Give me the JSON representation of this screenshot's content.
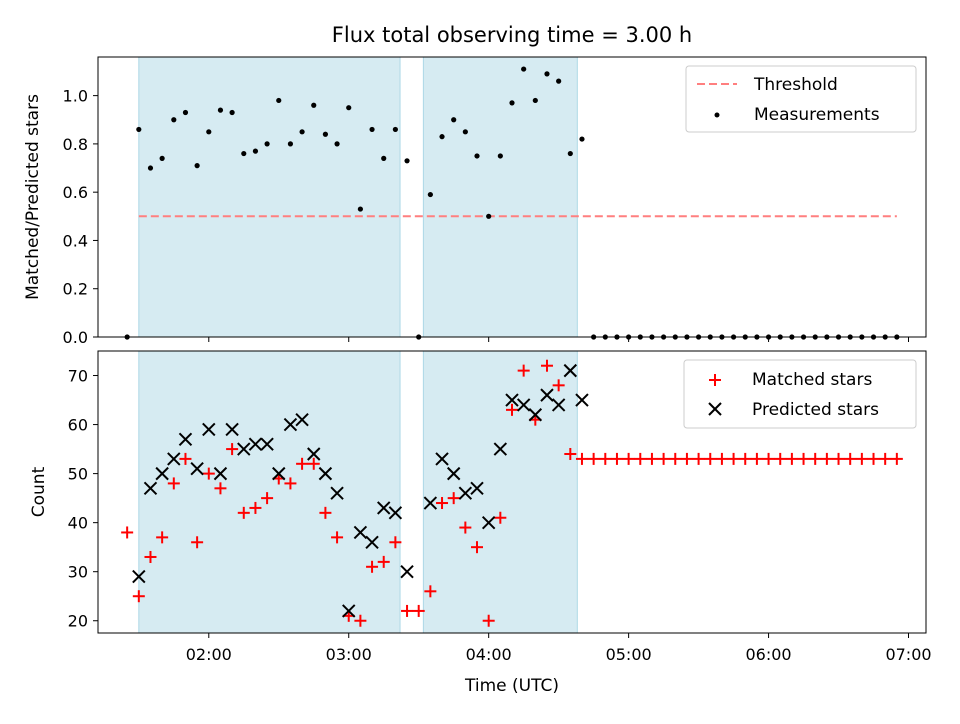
{
  "title": "Flux total observing time = 3.00 h",
  "colors": {
    "shade": "#add8e6",
    "threshold": "#ff7f7f",
    "measurement": "#000000",
    "matched": "#ff0000",
    "predicted": "#000000"
  },
  "chart_data": [
    {
      "type": "scatter",
      "panel": "top",
      "ylabel": "Matched/Predicted stars",
      "ylim": [
        0,
        1.16
      ],
      "y_ticks": [
        "0.0",
        "0.2",
        "0.4",
        "0.6",
        "0.8",
        "1.0"
      ],
      "x_ticks": [
        "",
        "",
        "",
        "",
        "",
        ""
      ],
      "legend": {
        "placement": "top-right",
        "entries": [
          "Threshold",
          "Measurements"
        ]
      },
      "shaded_spans": [
        [
          "01:30",
          "03:22"
        ],
        [
          "03:32",
          "04:38"
        ]
      ],
      "threshold": {
        "name": "Threshold",
        "value": 0.5,
        "x_range": [
          "01:30",
          "06:55"
        ]
      },
      "series": [
        {
          "name": "Measurements",
          "x": [
            "01:25",
            "01:30",
            "01:35",
            "01:40",
            "01:45",
            "01:50",
            "01:55",
            "02:00",
            "02:05",
            "02:10",
            "02:15",
            "02:20",
            "02:25",
            "02:30",
            "02:35",
            "02:40",
            "02:45",
            "02:50",
            "02:55",
            "03:00",
            "03:05",
            "03:10",
            "03:15",
            "03:20",
            "03:25",
            "03:30",
            "03:35",
            "03:40",
            "03:45",
            "03:50",
            "03:55",
            "04:00",
            "04:05",
            "04:10",
            "04:15",
            "04:20",
            "04:25",
            "04:30",
            "04:35",
            "04:40",
            "04:45",
            "04:50",
            "04:55",
            "05:00",
            "05:05",
            "05:10",
            "05:15",
            "05:20",
            "05:25",
            "05:30",
            "05:35",
            "05:40",
            "05:45",
            "05:50",
            "05:55",
            "06:00",
            "06:05",
            "06:10",
            "06:15",
            "06:20",
            "06:25",
            "06:30",
            "06:35",
            "06:40",
            "06:45",
            "06:50",
            "06:55"
          ],
          "y": [
            0.0,
            0.86,
            0.7,
            0.74,
            0.9,
            0.93,
            0.71,
            0.85,
            0.94,
            0.93,
            0.76,
            0.77,
            0.8,
            0.98,
            0.8,
            0.85,
            0.96,
            0.84,
            0.8,
            0.95,
            0.53,
            0.86,
            0.74,
            0.86,
            0.73,
            0.0,
            0.59,
            0.83,
            0.9,
            0.85,
            0.75,
            0.5,
            0.75,
            0.97,
            1.11,
            0.98,
            1.09,
            1.06,
            0.76,
            0.82,
            0.0,
            0.0,
            0.0,
            0.0,
            0.0,
            0.0,
            0.0,
            0.0,
            0.0,
            0.0,
            0.0,
            0.0,
            0.0,
            0.0,
            0.0,
            0.0,
            0.0,
            0.0,
            0.0,
            0.0,
            0.0,
            0.0,
            0.0,
            0.0,
            0.0,
            0.0,
            0.0
          ]
        }
      ]
    },
    {
      "type": "scatter",
      "panel": "bottom",
      "xlabel": "Time (UTC)",
      "ylabel": "Count",
      "ylim": [
        17.5,
        75
      ],
      "y_ticks": [
        "20",
        "30",
        "40",
        "50",
        "60",
        "70"
      ],
      "x_ticks": [
        "02:00",
        "03:00",
        "04:00",
        "05:00",
        "06:00",
        "07:00"
      ],
      "legend": {
        "placement": "top-right",
        "entries": [
          "Matched stars",
          "Predicted stars"
        ]
      },
      "shaded_spans": [
        [
          "01:30",
          "03:22"
        ],
        [
          "03:32",
          "04:38"
        ]
      ],
      "series": [
        {
          "name": "Matched stars",
          "x": [
            "01:25",
            "01:30",
            "01:35",
            "01:40",
            "01:45",
            "01:50",
            "01:55",
            "02:00",
            "02:05",
            "02:10",
            "02:15",
            "02:20",
            "02:25",
            "02:30",
            "02:35",
            "02:40",
            "02:45",
            "02:50",
            "02:55",
            "03:00",
            "03:05",
            "03:10",
            "03:15",
            "03:20",
            "03:25",
            "03:30",
            "03:35",
            "03:40",
            "03:45",
            "03:50",
            "03:55",
            "04:00",
            "04:05",
            "04:10",
            "04:15",
            "04:20",
            "04:25",
            "04:30",
            "04:35",
            "04:40",
            "04:45",
            "04:50",
            "04:55",
            "05:00",
            "05:05",
            "05:10",
            "05:15",
            "05:20",
            "05:25",
            "05:30",
            "05:35",
            "05:40",
            "05:45",
            "05:50",
            "05:55",
            "06:00",
            "06:05",
            "06:10",
            "06:15",
            "06:20",
            "06:25",
            "06:30",
            "06:35",
            "06:40",
            "06:45",
            "06:50",
            "06:55"
          ],
          "y": [
            38,
            25,
            33,
            37,
            48,
            53,
            36,
            50,
            47,
            55,
            42,
            43,
            45,
            49,
            48,
            52,
            52,
            42,
            37,
            21,
            20,
            31,
            32,
            36,
            22,
            22,
            26,
            44,
            45,
            39,
            35,
            20,
            41,
            63,
            71,
            61,
            72,
            68,
            54,
            53,
            53,
            53,
            53,
            53,
            53,
            53,
            53,
            53,
            53,
            53,
            53,
            53,
            53,
            53,
            53,
            53,
            53,
            53,
            53,
            53,
            53,
            53,
            53,
            53,
            53,
            53,
            53
          ]
        },
        {
          "name": "Predicted stars",
          "x": [
            "01:30",
            "01:35",
            "01:40",
            "01:45",
            "01:50",
            "01:55",
            "02:00",
            "02:05",
            "02:10",
            "02:15",
            "02:20",
            "02:25",
            "02:30",
            "02:35",
            "02:40",
            "02:45",
            "02:50",
            "02:55",
            "03:00",
            "03:05",
            "03:10",
            "03:15",
            "03:20",
            "03:25",
            "03:35",
            "03:40",
            "03:45",
            "03:50",
            "03:55",
            "04:00",
            "04:05",
            "04:10",
            "04:15",
            "04:20",
            "04:25",
            "04:30",
            "04:35",
            "04:40"
          ],
          "y": [
            29,
            47,
            50,
            53,
            57,
            51,
            59,
            50,
            59,
            55,
            56,
            56,
            50,
            60,
            61,
            54,
            50,
            46,
            22,
            38,
            36,
            43,
            42,
            30,
            44,
            53,
            50,
            46,
            47,
            40,
            55,
            65,
            64,
            62,
            66,
            64,
            71,
            65
          ]
        }
      ]
    }
  ]
}
